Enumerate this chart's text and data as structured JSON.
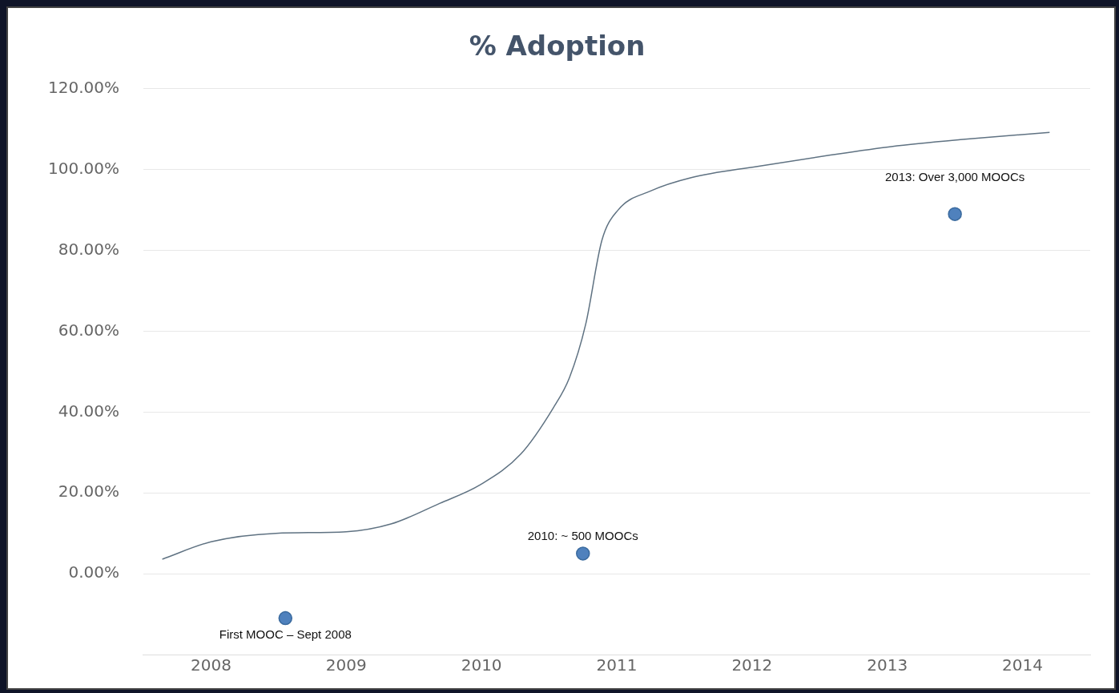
{
  "chart_data": {
    "type": "line",
    "title": "% Adoption",
    "xlim": [
      2007.5,
      2014.5
    ],
    "xticks": [
      2008,
      2009,
      2010,
      2011,
      2012,
      2013,
      2014
    ],
    "ylim": [
      -20,
      120
    ],
    "yticks": [
      {
        "value": 0,
        "label": "0.00%"
      },
      {
        "value": 20,
        "label": "20.00%"
      },
      {
        "value": 40,
        "label": "40.00%"
      },
      {
        "value": 60,
        "label": "60.00%"
      },
      {
        "value": 80,
        "label": "80.00%"
      },
      {
        "value": 100,
        "label": "100.00%"
      },
      {
        "value": 120,
        "label": "120.00%"
      }
    ],
    "grid": "y",
    "legend": false,
    "series": [
      {
        "color": "#5f7282",
        "marker": "none",
        "line_style": "solid",
        "x": [
          2007.64,
          2008,
          2008.48,
          2009,
          2009.33,
          2009.69,
          2009.99,
          2010.29,
          2010.53,
          2010.65,
          2010.77,
          2010.89,
          2011.01,
          2011.25,
          2011.55,
          2012.04,
          2012.58,
          2013.03,
          2013.54,
          2014.2
        ],
        "values": [
          3.6,
          7.9,
          10,
          10.4,
          12.3,
          17.4,
          22,
          29.6,
          41,
          48.5,
          61.7,
          82.5,
          90,
          94.7,
          98,
          100.8,
          103.6,
          105.7,
          107.4,
          109.2
        ]
      },
      {
        "type": "scatter",
        "color": "#4f81bd",
        "marker": "circle",
        "x": [
          2008.55,
          2010.75,
          2013.5
        ],
        "values": [
          -11,
          5,
          89
        ]
      }
    ],
    "annotations": [
      {
        "text": "First MOOC – Sept 2008",
        "x": 2008.55,
        "y": -11
      },
      {
        "text": "2010: ~ 500 MOOCs",
        "x": 2010.75,
        "y": 5
      },
      {
        "text": "2013: Over 3,000 MOOCs",
        "x": 2013.5,
        "y": 89
      }
    ]
  }
}
